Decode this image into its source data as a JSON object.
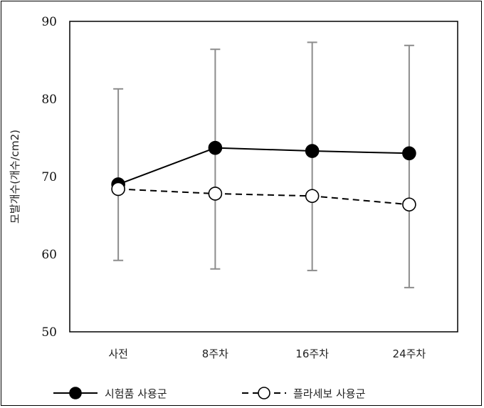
{
  "chart_data": {
    "type": "line",
    "categories": [
      "사전",
      "8주차",
      "16주차",
      "24주차"
    ],
    "ylabel": "모발개수(개수/cm2)",
    "ylim": [
      50,
      90
    ],
    "yticks": [
      50,
      60,
      70,
      80,
      90
    ],
    "grid": false,
    "legend_position": "bottom",
    "series": [
      {
        "name": "시험품 사용군",
        "values": [
          69.0,
          73.7,
          73.3,
          73.0
        ],
        "error_upper": [
          81.3,
          86.4,
          87.3,
          86.9
        ],
        "error_lower": [
          59.2,
          58.1,
          57.9,
          55.7
        ],
        "line_style": "solid",
        "marker_fill": "#000000"
      },
      {
        "name": "플라세보 사용군",
        "values": [
          68.4,
          67.8,
          67.5,
          66.4
        ],
        "line_style": "dashed",
        "marker_fill": "#ffffff"
      }
    ]
  },
  "colors": {
    "line": "#000000",
    "errorbar": "#8c8c8c"
  }
}
